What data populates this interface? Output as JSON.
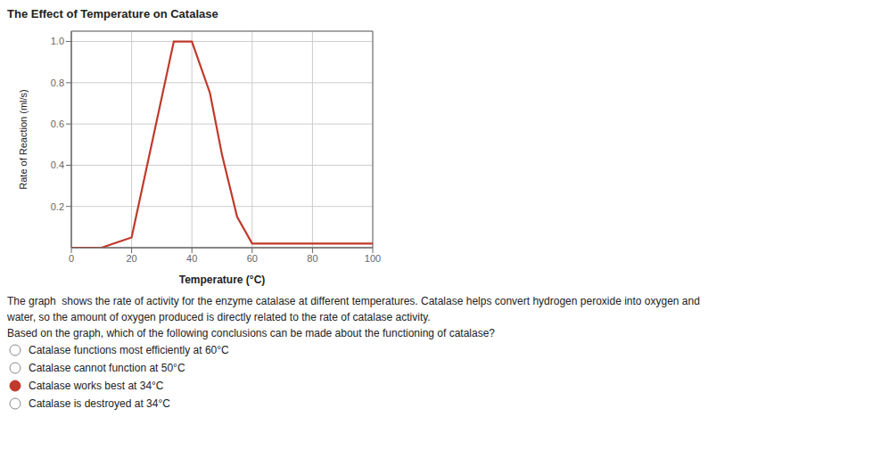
{
  "chart_data": {
    "type": "line",
    "title": "The Effect of Temperature on Catalase",
    "xlabel": "Temperature (°C)",
    "ylabel": "Rate of Reaction (ml/s)",
    "x": [
      0,
      10,
      20,
      34,
      40,
      46,
      50,
      55,
      60,
      70,
      80,
      100
    ],
    "values": [
      0.0,
      0.0,
      0.05,
      1.0,
      1.0,
      0.75,
      0.45,
      0.15,
      0.02,
      0.02,
      0.02,
      0.02
    ],
    "color": "#c0392b",
    "xlim": [
      0,
      100
    ],
    "ylim": [
      0,
      1.05
    ],
    "xticks": [
      0,
      20,
      40,
      60,
      80,
      100
    ],
    "yticks": [
      0.2,
      0.4,
      0.6,
      0.8,
      {
        "value": 1.0,
        "label": "1.0"
      }
    ],
    "grid": true,
    "annotations": [
      "The graph  shows the rate of activity for the enzyme catalase at different temperatures. Catalase helps convert hydrogen peroxide into oxygen and",
      "water, so the amount of oxygen produced is directly related to the rate of catalase activity.",
      "Based on the graph, which of the following conclusions can be made about the functioning of catalase?",
      {
        "text": "Catalase functions most efficiently at 60°C",
        "marker": "circle"
      },
      {
        "text": "Catalase cannot function at 50°C",
        "marker": "circle"
      },
      {
        "text": "Catalase works best at 34°C",
        "marker": "filled_circle"
      },
      {
        "text": "Catalase is destroyed at 34°C",
        "marker": "circle"
      }
    ]
  }
}
